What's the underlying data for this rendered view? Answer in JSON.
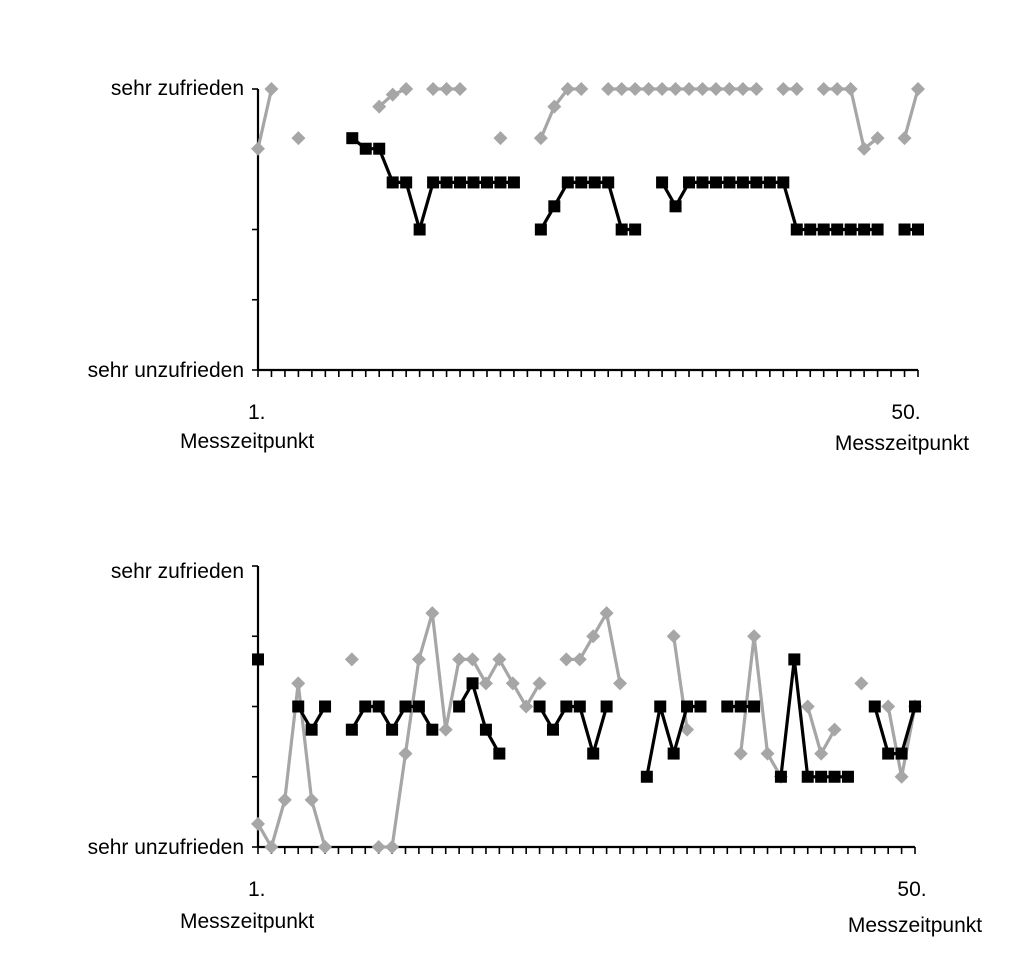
{
  "chart_data": [
    {
      "type": "line",
      "x_range": [
        1,
        50
      ],
      "y_range": [
        0,
        4
      ],
      "y_tick_labels": {
        "top": "sehr zufrieden",
        "bottom": "sehr unzufrieden"
      },
      "x_tick_labels": {
        "first": {
          "number": "1.",
          "label": "Messzeitpunkt"
        },
        "last": {
          "number": "50.",
          "label": "Messzeitpunkt"
        }
      },
      "series": [
        {
          "color": "#a6a6a6",
          "marker": "diamond",
          "points": [
            [
              1,
              3.15
            ],
            [
              2,
              4
            ],
            [
              4,
              3.3
            ],
            [
              10,
              3.75
            ],
            [
              11,
              3.92
            ],
            [
              12,
              4
            ],
            [
              14,
              4
            ],
            [
              15,
              4
            ],
            [
              16,
              4
            ],
            [
              19,
              3.3
            ],
            [
              22,
              3.3
            ],
            [
              23,
              3.75
            ],
            [
              24,
              4
            ],
            [
              25,
              4
            ],
            [
              27,
              4
            ],
            [
              28,
              4
            ],
            [
              29,
              4
            ],
            [
              30,
              4
            ],
            [
              31,
              4
            ],
            [
              32,
              4
            ],
            [
              33,
              4
            ],
            [
              34,
              4
            ],
            [
              35,
              4
            ],
            [
              36,
              4
            ],
            [
              37,
              4
            ],
            [
              38,
              4
            ],
            [
              40,
              4
            ],
            [
              41,
              4
            ],
            [
              43,
              4
            ],
            [
              44,
              4
            ],
            [
              45,
              4
            ],
            [
              46,
              3.15
            ],
            [
              47,
              3.3
            ],
            [
              49,
              3.3
            ],
            [
              50,
              4
            ]
          ]
        },
        {
          "color": "#000000",
          "marker": "square",
          "points": [
            [
              8,
              3.3
            ],
            [
              9,
              3.15
            ],
            [
              10,
              3.15
            ],
            [
              11,
              2.67
            ],
            [
              12,
              2.67
            ],
            [
              13,
              2
            ],
            [
              14,
              2.67
            ],
            [
              15,
              2.67
            ],
            [
              16,
              2.67
            ],
            [
              17,
              2.67
            ],
            [
              18,
              2.67
            ],
            [
              19,
              2.67
            ],
            [
              20,
              2.67
            ],
            [
              22,
              2
            ],
            [
              23,
              2.33
            ],
            [
              24,
              2.67
            ],
            [
              25,
              2.67
            ],
            [
              26,
              2.67
            ],
            [
              27,
              2.67
            ],
            [
              28,
              2
            ],
            [
              29,
              2
            ],
            [
              31,
              2.67
            ],
            [
              32,
              2.33
            ],
            [
              33,
              2.67
            ],
            [
              34,
              2.67
            ],
            [
              35,
              2.67
            ],
            [
              36,
              2.67
            ],
            [
              37,
              2.67
            ],
            [
              38,
              2.67
            ],
            [
              39,
              2.67
            ],
            [
              40,
              2.67
            ],
            [
              41,
              2
            ],
            [
              42,
              2
            ],
            [
              43,
              2
            ],
            [
              44,
              2
            ],
            [
              45,
              2
            ],
            [
              46,
              2
            ],
            [
              47,
              2
            ],
            [
              49,
              2
            ],
            [
              50,
              2
            ]
          ]
        }
      ]
    },
    {
      "type": "line",
      "x_range": [
        1,
        50
      ],
      "y_range": [
        0,
        4
      ],
      "y_tick_labels": {
        "top": "sehr zufrieden",
        "bottom": "sehr unzufrieden"
      },
      "x_tick_labels": {
        "first": {
          "number": "1.",
          "label": "Messzeitpunkt"
        },
        "last": {
          "number": "50.",
          "label": "Messzeitpunkt"
        }
      },
      "series": [
        {
          "color": "#a6a6a6",
          "marker": "diamond",
          "points": [
            [
              1,
              0.33
            ],
            [
              2,
              0
            ],
            [
              3,
              0.67
            ],
            [
              4,
              2.33
            ],
            [
              5,
              0.67
            ],
            [
              6,
              0
            ],
            [
              8,
              2.67
            ],
            [
              10,
              0
            ],
            [
              11,
              0
            ],
            [
              12,
              1.33
            ],
            [
              13,
              2.67
            ],
            [
              14,
              3.33
            ],
            [
              15,
              1.67
            ],
            [
              16,
              2.67
            ],
            [
              17,
              2.67
            ],
            [
              18,
              2.33
            ],
            [
              19,
              2.67
            ],
            [
              20,
              2.33
            ],
            [
              21,
              2
            ],
            [
              22,
              2.33
            ],
            [
              24,
              2.67
            ],
            [
              25,
              2.67
            ],
            [
              26,
              3
            ],
            [
              27,
              3.33
            ],
            [
              28,
              2.33
            ],
            [
              32,
              3
            ],
            [
              33,
              1.67
            ],
            [
              37,
              1.33
            ],
            [
              38,
              3
            ],
            [
              39,
              1.33
            ],
            [
              40,
              1
            ],
            [
              42,
              2
            ],
            [
              43,
              1.33
            ],
            [
              44,
              1.67
            ],
            [
              46,
              2.33
            ],
            [
              48,
              2
            ],
            [
              49,
              1
            ],
            [
              50,
              2
            ]
          ]
        },
        {
          "color": "#000000",
          "marker": "square",
          "points": [
            [
              1,
              2.67
            ],
            [
              4,
              2
            ],
            [
              5,
              1.67
            ],
            [
              6,
              2
            ],
            [
              8,
              1.67
            ],
            [
              9,
              2
            ],
            [
              10,
              2
            ],
            [
              11,
              1.67
            ],
            [
              12,
              2
            ],
            [
              13,
              2
            ],
            [
              14,
              1.67
            ],
            [
              16,
              2
            ],
            [
              17,
              2.33
            ],
            [
              18,
              1.67
            ],
            [
              19,
              1.33
            ],
            [
              22,
              2
            ],
            [
              23,
              1.67
            ],
            [
              24,
              2
            ],
            [
              25,
              2
            ],
            [
              26,
              1.33
            ],
            [
              27,
              2
            ],
            [
              30,
              1
            ],
            [
              31,
              2
            ],
            [
              32,
              1.33
            ],
            [
              33,
              2
            ],
            [
              34,
              2
            ],
            [
              36,
              2
            ],
            [
              37,
              2
            ],
            [
              38,
              2
            ],
            [
              40,
              1
            ],
            [
              41,
              2.67
            ],
            [
              42,
              1
            ],
            [
              43,
              1
            ],
            [
              44,
              1
            ],
            [
              45,
              1
            ],
            [
              47,
              2
            ],
            [
              48,
              1.33
            ],
            [
              49,
              1.33
            ],
            [
              50,
              2
            ]
          ]
        }
      ]
    }
  ]
}
